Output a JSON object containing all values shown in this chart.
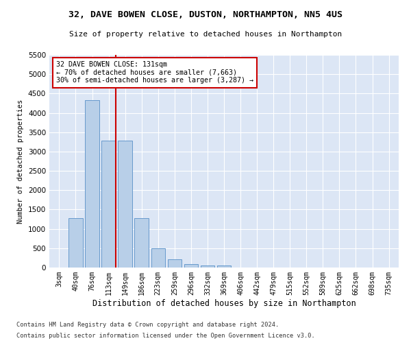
{
  "title1": "32, DAVE BOWEN CLOSE, DUSTON, NORTHAMPTON, NN5 4US",
  "title2": "Size of property relative to detached houses in Northampton",
  "xlabel": "Distribution of detached houses by size in Northampton",
  "ylabel": "Number of detached properties",
  "categories": [
    "3sqm",
    "40sqm",
    "76sqm",
    "113sqm",
    "149sqm",
    "186sqm",
    "223sqm",
    "259sqm",
    "296sqm",
    "332sqm",
    "369sqm",
    "406sqm",
    "442sqm",
    "479sqm",
    "515sqm",
    "552sqm",
    "589sqm",
    "625sqm",
    "662sqm",
    "698sqm",
    "735sqm"
  ],
  "values": [
    0,
    1270,
    4330,
    3290,
    3290,
    1280,
    490,
    210,
    90,
    60,
    50,
    0,
    0,
    0,
    0,
    0,
    0,
    0,
    0,
    0,
    0
  ],
  "bar_color": "#b8cfe8",
  "bar_edge_color": "#6699cc",
  "vline_x": 3.42,
  "vline_color": "#cc0000",
  "annotation_text": "32 DAVE BOWEN CLOSE: 131sqm\n← 70% of detached houses are smaller (7,663)\n30% of semi-detached houses are larger (3,287) →",
  "annotation_box_color": "#cc0000",
  "ylim": [
    0,
    5500
  ],
  "yticks": [
    0,
    500,
    1000,
    1500,
    2000,
    2500,
    3000,
    3500,
    4000,
    4500,
    5000,
    5500
  ],
  "bg_color": "#dce6f5",
  "grid_color": "#ffffff",
  "footer1": "Contains HM Land Registry data © Crown copyright and database right 2024.",
  "footer2": "Contains public sector information licensed under the Open Government Licence v3.0."
}
